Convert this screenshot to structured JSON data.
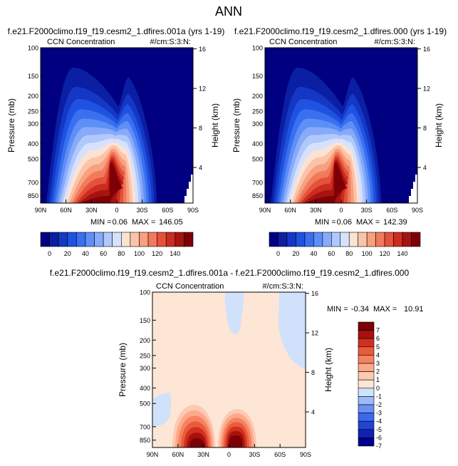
{
  "figure": {
    "title": "ANN"
  },
  "colors": {
    "ctrl": [
      "#000080",
      "#0a1fa3",
      "#1438c5",
      "#1f52e0",
      "#3a6ff0",
      "#5e8ff7",
      "#87abfa",
      "#b1c8fc",
      "#d6e2fd",
      "#fce2d2",
      "#fbc4a8",
      "#f8a07f",
      "#f27a5c",
      "#e5523b",
      "#cc2c20",
      "#a8130f",
      "#7d0006"
    ],
    "diff": [
      "#00008c",
      "#0f22b0",
      "#1f45d5",
      "#3d68ec",
      "#6a90f4",
      "#9cb9f8",
      "#d0e1fb",
      "#fde6d6",
      "#fdc9b0",
      "#fba98a",
      "#f68260",
      "#ea5a3d",
      "#d1301f",
      "#a8110d",
      "#7a0005"
    ]
  },
  "chart_data": [
    {
      "type": "heatmap",
      "title": "f.e21.F2000climo.f19_f19.cesm2_1.dfires.001a (yrs 1-19)",
      "left_label": "CCN Concentration",
      "right_label": "#/cm:S:3:N:",
      "ylabel": "Pressure (mb)",
      "y2label": "Height (km)",
      "x_ticks": [
        "90N",
        "60N",
        "30N",
        "0",
        "30S",
        "60S",
        "90S"
      ],
      "y_ticks": [
        "100",
        "150",
        "200",
        "250",
        "300",
        "400",
        "500",
        "700",
        "850"
      ],
      "y2_ticks": [
        "16",
        "12",
        "8",
        "4"
      ],
      "stats": {
        "min_label": "MIN =",
        "min": "0.06",
        "max_label": "MAX =",
        "max": "146.05"
      },
      "colorbar": {
        "tick_labels": [
          "0",
          "20",
          "40",
          "60",
          "80",
          "100",
          "120",
          "140"
        ]
      }
    },
    {
      "type": "heatmap",
      "title": "f.e21.F2000climo.f19_f19.cesm2_1.dfires.000 (yrs 1-19)",
      "left_label": "CCN Concentration",
      "right_label": "#/cm:S:3:N:",
      "ylabel": "Pressure (mb)",
      "y2label": "Height (km)",
      "x_ticks": [
        "90N",
        "60N",
        "30N",
        "0",
        "30S",
        "60S",
        "90S"
      ],
      "y_ticks": [
        "100",
        "150",
        "200",
        "250",
        "300",
        "400",
        "500",
        "700",
        "850"
      ],
      "y2_ticks": [
        "16",
        "12",
        "8",
        "4"
      ],
      "stats": {
        "min_label": "MIN =",
        "min": "0.06",
        "max_label": "MAX =",
        "max": "142.39"
      },
      "colorbar": {
        "tick_labels": [
          "0",
          "20",
          "40",
          "60",
          "80",
          "100",
          "120",
          "140"
        ]
      }
    },
    {
      "type": "heatmap",
      "title": "f.e21.F2000climo.f19_f19.cesm2_1.dfires.001a - f.e21.F2000climo.f19_f19.cesm2_1.dfires.000",
      "left_label": "CCN Concentration",
      "right_label": "#/cm:S:3:N:",
      "ylabel": "Pressure (mb)",
      "y2label": "Height (km)",
      "x_ticks": [
        "90N",
        "60N",
        "30N",
        "0",
        "30S",
        "60S",
        "90S"
      ],
      "y_ticks": [
        "100",
        "150",
        "200",
        "250",
        "300",
        "400",
        "500",
        "700",
        "850"
      ],
      "y2_ticks": [
        "16",
        "12",
        "8",
        "4"
      ],
      "stats": {
        "min_label": "MIN =",
        "min": "-0.34",
        "max_label": "MAX =",
        "max": "10.91"
      },
      "colorbar": {
        "tick_labels": [
          "7",
          "6",
          "5",
          "4",
          "3",
          "2",
          "1",
          "0",
          "-1",
          "-2",
          "-3",
          "-4",
          "-5",
          "-6",
          "-7"
        ]
      }
    }
  ]
}
